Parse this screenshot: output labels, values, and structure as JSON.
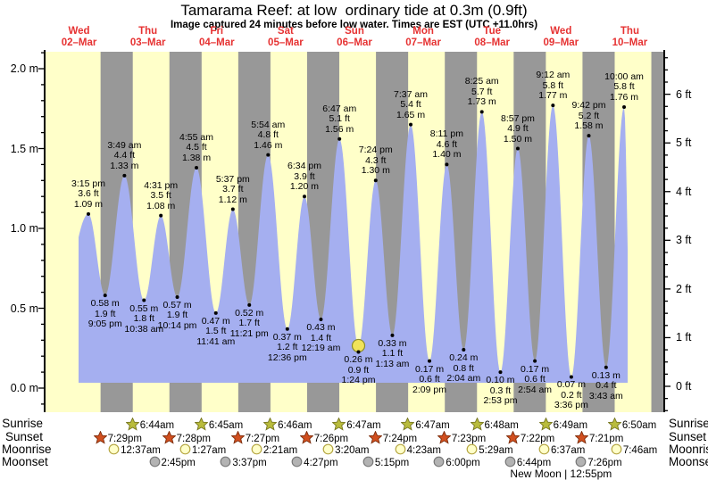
{
  "title": "Tamarama Reef: at low  ordinary tide at 0.3m (0.9ft)",
  "subtitle": "Image captured 24 minutes before low water. Times are EST (UTC +11.0hrs)",
  "days": [
    {
      "name": "Wed",
      "date": "02–Mar"
    },
    {
      "name": "Thu",
      "date": "03–Mar"
    },
    {
      "name": "Fri",
      "date": "04–Mar"
    },
    {
      "name": "Sat",
      "date": "05–Mar"
    },
    {
      "name": "Sun",
      "date": "06–Mar"
    },
    {
      "name": "Mon",
      "date": "07–Mar"
    },
    {
      "name": "Tue",
      "date": "08–Mar"
    },
    {
      "name": "Wed",
      "date": "09–Mar"
    },
    {
      "name": "Thu",
      "date": "10–Mar"
    }
  ],
  "chart_data": {
    "type": "area",
    "title": "Tamarama Reef tide curve, 02–10 March",
    "ylabel_left": "metres",
    "ylabel_right": "feet",
    "y_left_ticks": [
      {
        "value": 0.0,
        "label": "0.0 m"
      },
      {
        "value": 0.5,
        "label": "0.5 m"
      },
      {
        "value": 1.0,
        "label": "1.0 m"
      },
      {
        "value": 1.5,
        "label": "1.5 m"
      },
      {
        "value": 2.0,
        "label": "2.0 m"
      }
    ],
    "y_right_ticks": [
      {
        "value": 0,
        "label": "0 ft"
      },
      {
        "value": 1,
        "label": "1 ft"
      },
      {
        "value": 2,
        "label": "2 ft"
      },
      {
        "value": 3,
        "label": "3 ft"
      },
      {
        "value": 4,
        "label": "4 ft"
      },
      {
        "value": 5,
        "label": "5 ft"
      },
      {
        "value": 6,
        "label": "6 ft"
      }
    ],
    "tides": [
      {
        "day": 0,
        "time": "3:15 pm",
        "hour": 15.25,
        "ft": "3.6 ft",
        "m": "1.09 m",
        "height_m": 1.09,
        "type": "high"
      },
      {
        "day": 0,
        "time": "9:05 pm",
        "hour": 21.083,
        "ft": "1.9 ft",
        "m": "0.58 m",
        "height_m": 0.58,
        "type": "low"
      },
      {
        "day": 1,
        "time": "3:49 am",
        "hour": 3.817,
        "ft": "4.4 ft",
        "m": "1.33 m",
        "height_m": 1.33,
        "type": "high"
      },
      {
        "day": 1,
        "time": "10:38 am",
        "hour": 10.633,
        "ft": "1.8 ft",
        "m": "0.55 m",
        "height_m": 0.55,
        "type": "low"
      },
      {
        "day": 1,
        "time": "4:31 pm",
        "hour": 16.517,
        "ft": "3.5 ft",
        "m": "1.08 m",
        "height_m": 1.08,
        "type": "high"
      },
      {
        "day": 1,
        "time": "10:14 pm",
        "hour": 22.233,
        "ft": "1.9 ft",
        "m": "0.57 m",
        "height_m": 0.57,
        "type": "low"
      },
      {
        "day": 2,
        "time": "4:55 am",
        "hour": 4.917,
        "ft": "4.5 ft",
        "m": "1.38 m",
        "height_m": 1.38,
        "type": "high"
      },
      {
        "day": 2,
        "time": "11:41 am",
        "hour": 11.683,
        "ft": "1.5 ft",
        "m": "0.47 m",
        "height_m": 0.47,
        "type": "low"
      },
      {
        "day": 2,
        "time": "5:37 pm",
        "hour": 17.617,
        "ft": "3.7 ft",
        "m": "1.12 m",
        "height_m": 1.12,
        "type": "high"
      },
      {
        "day": 2,
        "time": "11:21 pm",
        "hour": 23.35,
        "ft": "1.7 ft",
        "m": "0.52 m",
        "height_m": 0.52,
        "type": "low"
      },
      {
        "day": 3,
        "time": "5:54 am",
        "hour": 5.9,
        "ft": "4.8 ft",
        "m": "1.46 m",
        "height_m": 1.46,
        "type": "high"
      },
      {
        "day": 3,
        "time": "12:36 pm",
        "hour": 12.6,
        "ft": "1.2 ft",
        "m": "0.37 m",
        "height_m": 0.37,
        "type": "low"
      },
      {
        "day": 3,
        "time": "6:34 pm",
        "hour": 18.567,
        "ft": "3.9 ft",
        "m": "1.20 m",
        "height_m": 1.2,
        "type": "high"
      },
      {
        "day": 4,
        "time": "12:19 am",
        "hour": 0.317,
        "ft": "1.4 ft",
        "m": "0.43 m",
        "height_m": 0.43,
        "type": "low"
      },
      {
        "day": 4,
        "time": "6:47 am",
        "hour": 6.783,
        "ft": "5.1 ft",
        "m": "1.56 m",
        "height_m": 1.56,
        "type": "high"
      },
      {
        "day": 4,
        "time": "1:24 pm",
        "hour": 13.4,
        "ft": "0.9 ft",
        "m": "0.26 m",
        "height_m": 0.26,
        "type": "low",
        "current_marker": true
      },
      {
        "day": 4,
        "time": "7:24 pm",
        "hour": 19.4,
        "ft": "4.3 ft",
        "m": "1.30 m",
        "height_m": 1.3,
        "type": "high"
      },
      {
        "day": 5,
        "time": "1:13 am",
        "hour": 1.217,
        "ft": "1.1 ft",
        "m": "0.33 m",
        "height_m": 0.33,
        "type": "low"
      },
      {
        "day": 5,
        "time": "7:37 am",
        "hour": 7.617,
        "ft": "5.4 ft",
        "m": "1.65 m",
        "height_m": 1.65,
        "type": "high"
      },
      {
        "day": 5,
        "time": "2:09 pm",
        "hour": 14.15,
        "ft": "0.6 ft",
        "m": "0.17 m",
        "height_m": 0.17,
        "type": "low"
      },
      {
        "day": 5,
        "time": "8:11 pm",
        "hour": 20.183,
        "ft": "4.6 ft",
        "m": "1.40 m",
        "height_m": 1.4,
        "type": "high"
      },
      {
        "day": 6,
        "time": "2:04 am",
        "hour": 2.067,
        "ft": "0.8 ft",
        "m": "0.24 m",
        "height_m": 0.24,
        "type": "low"
      },
      {
        "day": 6,
        "time": "8:25 am",
        "hour": 8.417,
        "ft": "5.7 ft",
        "m": "1.73 m",
        "height_m": 1.73,
        "type": "high"
      },
      {
        "day": 6,
        "time": "2:53 pm",
        "hour": 14.883,
        "ft": "0.3 ft",
        "m": "0.10 m",
        "height_m": 0.1,
        "type": "low"
      },
      {
        "day": 6,
        "time": "8:57 pm",
        "hour": 20.95,
        "ft": "4.9 ft",
        "m": "1.50 m",
        "height_m": 1.5,
        "type": "high"
      },
      {
        "day": 7,
        "time": "2:54 am",
        "hour": 2.9,
        "ft": "0.6 ft",
        "m": "0.17 m",
        "height_m": 0.17,
        "type": "low"
      },
      {
        "day": 7,
        "time": "9:12 am",
        "hour": 9.2,
        "ft": "5.8 ft",
        "m": "1.77 m",
        "height_m": 1.77,
        "type": "high"
      },
      {
        "day": 7,
        "time": "3:36 pm",
        "hour": 15.6,
        "ft": "0.2 ft",
        "m": "0.07 m",
        "height_m": 0.07,
        "type": "low"
      },
      {
        "day": 7,
        "time": "9:42 pm",
        "hour": 21.7,
        "ft": "5.2 ft",
        "m": "1.58 m",
        "height_m": 1.58,
        "type": "high"
      },
      {
        "day": 8,
        "time": "3:43 am",
        "hour": 3.717,
        "ft": "0.4 ft",
        "m": "0.13 m",
        "height_m": 0.13,
        "type": "low"
      },
      {
        "day": 8,
        "time": "10:00 am",
        "hour": 10.0,
        "ft": "5.8 ft",
        "m": "1.76 m",
        "height_m": 1.76,
        "type": "high"
      }
    ]
  },
  "almanac": {
    "rows": [
      {
        "label": "Sunrise",
        "icon": "sunrise-star-icon",
        "events": [
          {
            "day": 1,
            "hour": 6.733,
            "time": "6:44am"
          },
          {
            "day": 2,
            "hour": 6.75,
            "time": "6:45am"
          },
          {
            "day": 3,
            "hour": 6.767,
            "time": "6:46am"
          },
          {
            "day": 4,
            "hour": 6.783,
            "time": "6:47am"
          },
          {
            "day": 5,
            "hour": 6.783,
            "time": "6:47am"
          },
          {
            "day": 6,
            "hour": 6.8,
            "time": "6:48am"
          },
          {
            "day": 7,
            "hour": 6.817,
            "time": "6:49am"
          },
          {
            "day": 8,
            "hour": 6.833,
            "time": "6:50am"
          }
        ]
      },
      {
        "label": "Sunset",
        "icon": "sunset-star-icon",
        "events": [
          {
            "day": 0,
            "hour": 19.483,
            "time": "7:29pm"
          },
          {
            "day": 1,
            "hour": 19.467,
            "time": "7:28pm"
          },
          {
            "day": 2,
            "hour": 19.45,
            "time": "7:27pm"
          },
          {
            "day": 3,
            "hour": 19.433,
            "time": "7:26pm"
          },
          {
            "day": 4,
            "hour": 19.4,
            "time": "7:24pm"
          },
          {
            "day": 5,
            "hour": 19.383,
            "time": "7:23pm"
          },
          {
            "day": 6,
            "hour": 19.367,
            "time": "7:22pm"
          },
          {
            "day": 7,
            "hour": 19.35,
            "time": "7:21pm"
          }
        ]
      },
      {
        "label": "Moonrise",
        "icon": "moonrise-icon",
        "events": [
          {
            "day": 1,
            "hour": 0.617,
            "time": "12:37am"
          },
          {
            "day": 2,
            "hour": 1.45,
            "time": "1:27am"
          },
          {
            "day": 3,
            "hour": 2.35,
            "time": "2:21am"
          },
          {
            "day": 4,
            "hour": 3.333,
            "time": "3:20am"
          },
          {
            "day": 5,
            "hour": 4.383,
            "time": "4:23am"
          },
          {
            "day": 6,
            "hour": 5.483,
            "time": "5:29am"
          },
          {
            "day": 7,
            "hour": 6.617,
            "time": "6:37am"
          },
          {
            "day": 8,
            "hour": 7.767,
            "time": "7:46am"
          }
        ]
      },
      {
        "label": "Moonset",
        "icon": "moonset-icon",
        "events": [
          {
            "day": 1,
            "hour": 14.75,
            "time": "2:45pm"
          },
          {
            "day": 2,
            "hour": 15.617,
            "time": "3:37pm"
          },
          {
            "day": 3,
            "hour": 16.45,
            "time": "4:27pm"
          },
          {
            "day": 4,
            "hour": 17.25,
            "time": "5:15pm"
          },
          {
            "day": 5,
            "hour": 18.0,
            "time": "6:00pm"
          },
          {
            "day": 6,
            "hour": 18.733,
            "time": "6:44pm"
          },
          {
            "day": 7,
            "hour": 19.433,
            "time": "7:26pm"
          }
        ]
      }
    ],
    "new_moon": {
      "text": "New Moon | 12:55pm",
      "day": 7
    }
  },
  "colors": {
    "day_band": "#ffffc9",
    "night_band": "#989898",
    "tide_area": "#a5aff0",
    "day_label": "#e63232",
    "axis": "#000000",
    "marker_fill": "#f0e35a",
    "marker_stroke": "#8b8b2a",
    "sunrise_fill": "#b9bc3c",
    "sunrise_stroke": "#75751f",
    "sunset_fill": "#d14f1f",
    "sunset_stroke": "#7c2d0c",
    "moonrise_fill": "#ffffc9",
    "moonrise_stroke": "#b5a642",
    "moonset_fill": "#b3b3b3",
    "moonset_stroke": "#787878"
  }
}
